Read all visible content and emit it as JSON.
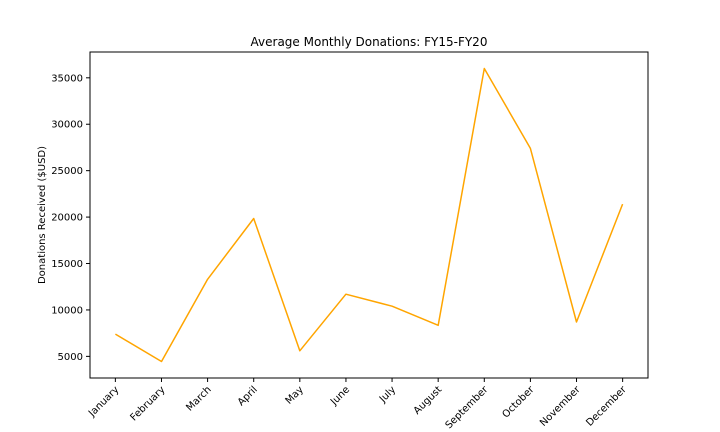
{
  "chart_data": {
    "type": "line",
    "title": "Average Monthly Donations: FY15-FY20",
    "xlabel": "",
    "ylabel": "Donations Received ($USD)",
    "categories": [
      "January",
      "February",
      "March",
      "April",
      "May",
      "June",
      "July",
      "August",
      "September",
      "October",
      "November",
      "December"
    ],
    "series": [
      {
        "values": [
          7400,
          4450,
          13300,
          19850,
          5600,
          11700,
          10400,
          8350,
          36000,
          27400,
          8700,
          21400
        ],
        "color": "#FFA500"
      }
    ],
    "yticks": [
      5000,
      10000,
      15000,
      20000,
      25000,
      30000,
      35000
    ],
    "ylim": [
      2670,
      37780
    ],
    "grid": false,
    "legend": "none"
  }
}
